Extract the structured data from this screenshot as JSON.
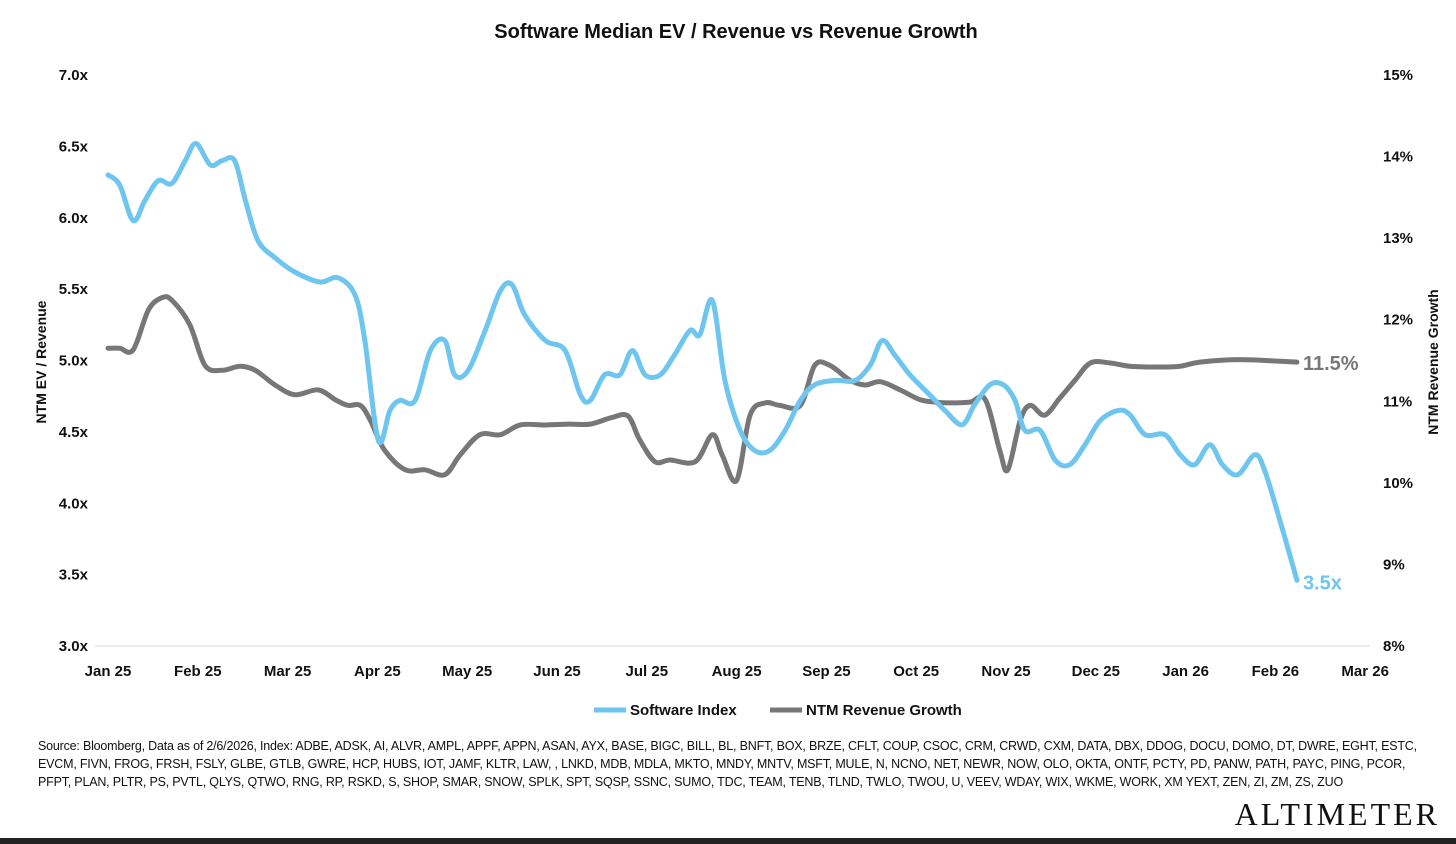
{
  "chart_data": {
    "type": "line",
    "title": "Software Median EV / Revenue vs Revenue Growth",
    "ylabel": "NTM EV / Revenue",
    "y2label": "NTM Revenue Growth",
    "xlabel": "",
    "x_ticks": [
      "Jan 25",
      "Feb 25",
      "Mar 25",
      "Apr 25",
      "May 25",
      "Jun 25",
      "Jul 25",
      "Aug 25",
      "Sep 25",
      "Oct 25",
      "Nov 25",
      "Dec 25",
      "Jan 26",
      "Feb 26",
      "Mar 26"
    ],
    "y_ticks": [
      "7.0x",
      "6.5x",
      "6.0x",
      "5.5x",
      "5.0x",
      "4.5x",
      "4.0x",
      "3.5x",
      "3.0x"
    ],
    "y2_ticks": [
      "15%",
      "14%",
      "13%",
      "12%",
      "11%",
      "10%",
      "9%",
      "8%"
    ],
    "ylim": [
      3.0,
      7.0
    ],
    "y2lim": [
      8,
      15
    ],
    "x_unit": "months since Jan 25",
    "legend_position": "bottom-center",
    "series": [
      {
        "name": "Software Index",
        "axis": "left",
        "color": "#6EC6F0",
        "end_label": "3.5x",
        "x": [
          0,
          0.13,
          0.28,
          0.41,
          0.56,
          0.71,
          0.86,
          0.98,
          1.14,
          1.27,
          1.41,
          1.53,
          1.67,
          1.86,
          2.08,
          2.36,
          2.56,
          2.75,
          2.86,
          3.01,
          3.14,
          3.25,
          3.42,
          3.59,
          3.75,
          3.86,
          4.01,
          4.2,
          4.37,
          4.5,
          4.64,
          4.87,
          5.09,
          5.26,
          5.37,
          5.53,
          5.7,
          5.84,
          5.98,
          6.15,
          6.31,
          6.48,
          6.59,
          6.73,
          6.87,
          7.04,
          7.2,
          7.37,
          7.54,
          7.71,
          7.87,
          8.1,
          8.32,
          8.49,
          8.62,
          8.76,
          8.93,
          9.15,
          9.32,
          9.51,
          9.65,
          9.82,
          9.97,
          10.1,
          10.21,
          10.38,
          10.55,
          10.71,
          10.88,
          11.05,
          11.25,
          11.38,
          11.55,
          11.77,
          11.94,
          12.1,
          12.27,
          12.41,
          12.58,
          12.77,
          12.88,
          13.05,
          13.24
        ],
        "y": [
          6.3,
          6.23,
          5.98,
          6.12,
          6.26,
          6.24,
          6.4,
          6.52,
          6.37,
          6.4,
          6.4,
          6.12,
          5.84,
          5.72,
          5.62,
          5.55,
          5.58,
          5.46,
          5.14,
          4.44,
          4.65,
          4.72,
          4.72,
          5.07,
          5.14,
          4.9,
          4.93,
          5.21,
          5.49,
          5.53,
          5.32,
          5.14,
          5.07,
          4.76,
          4.72,
          4.9,
          4.9,
          5.07,
          4.9,
          4.9,
          5.04,
          5.21,
          5.18,
          5.42,
          4.86,
          4.51,
          4.37,
          4.37,
          4.51,
          4.72,
          4.83,
          4.86,
          4.86,
          4.97,
          5.14,
          5.04,
          4.9,
          4.76,
          4.65,
          4.55,
          4.69,
          4.83,
          4.83,
          4.72,
          4.51,
          4.51,
          4.3,
          4.27,
          4.41,
          4.58,
          4.65,
          4.62,
          4.48,
          4.48,
          4.34,
          4.27,
          4.41,
          4.27,
          4.2,
          4.34,
          4.23,
          3.88,
          3.46
        ]
      },
      {
        "name": "NTM Revenue Growth",
        "axis": "right",
        "color": "#777777",
        "end_label": "11.5%",
        "x": [
          0,
          0.13,
          0.28,
          0.45,
          0.6,
          0.71,
          0.91,
          1.08,
          1.27,
          1.47,
          1.64,
          1.86,
          2.08,
          2.34,
          2.53,
          2.67,
          2.81,
          2.92,
          3.08,
          3.31,
          3.53,
          3.75,
          3.92,
          4.14,
          4.37,
          4.59,
          4.87,
          5.14,
          5.37,
          5.61,
          5.79,
          5.92,
          6.09,
          6.26,
          6.54,
          6.73,
          6.84,
          7.0,
          7.15,
          7.32,
          7.48,
          7.71,
          7.87,
          8.04,
          8.26,
          8.43,
          8.6,
          8.82,
          9.04,
          9.21,
          9.38,
          9.6,
          9.77,
          9.93,
          10.02,
          10.16,
          10.27,
          10.43,
          10.6,
          10.77,
          10.94,
          11.16,
          11.38,
          11.71,
          11.94,
          12.16,
          12.61,
          13.24
        ],
        "y": [
          11.65,
          11.65,
          11.63,
          12.12,
          12.27,
          12.24,
          11.94,
          11.44,
          11.38,
          11.43,
          11.38,
          11.2,
          11.08,
          11.14,
          11.02,
          10.95,
          10.95,
          10.77,
          10.4,
          10.16,
          10.16,
          10.1,
          10.34,
          10.59,
          10.59,
          10.71,
          10.71,
          10.72,
          10.72,
          10.8,
          10.82,
          10.53,
          10.26,
          10.28,
          10.26,
          10.59,
          10.34,
          10.03,
          10.83,
          10.98,
          10.95,
          10.95,
          11.44,
          11.44,
          11.26,
          11.2,
          11.24,
          11.14,
          11.02,
          10.99,
          10.98,
          10.99,
          11.02,
          10.4,
          10.16,
          10.77,
          10.95,
          10.83,
          11.04,
          11.26,
          11.47,
          11.47,
          11.43,
          11.42,
          11.43,
          11.48,
          11.51,
          11.48
        ]
      }
    ]
  },
  "source": "Source: Bloomberg, Data as of 2/6/2026, Index: ADBE, ADSK, AI, ALVR, AMPL, APPF, APPN, ASAN, AYX, BASE, BIGC, BILL, BL, BNFT, BOX,  BRZE, CFLT, COUP, CSOC, CRM, CRWD, CXM, DATA, DBX, DDOG, DOCU, DOMO, DT, DWRE, EGHT, ESTC, EVCM, FIVN, FROG, FRSH, FSLY, GLBE, GTLB, GWRE, HCP, HUBS, IOT, JAMF, KLTR, LAW, , LNKD, MDB, MDLA, MKTO, MNDY, MNTV, MSFT, MULE, N, NCNO, NET, NEWR, NOW, OLO, OKTA, ONTF, PCTY, PD, PANW, PATH, PAYC, PING, PCOR, PFPT, PLAN, PLTR, PS, PVTL, QLYS, QTWO, RNG, RP, RSKD, S, SHOP, SMAR, SNOW, SPLK, SPT, SQSP, SSNC, SUMO, TDC, TEAM, TENB, TLND,  TWLO, TWOU, U, VEEV, WDAY, WIX, WKME, WORK, XM YEXT, ZEN, ZI, ZM, ZS, ZUO",
  "logo": "ALTIMETER"
}
